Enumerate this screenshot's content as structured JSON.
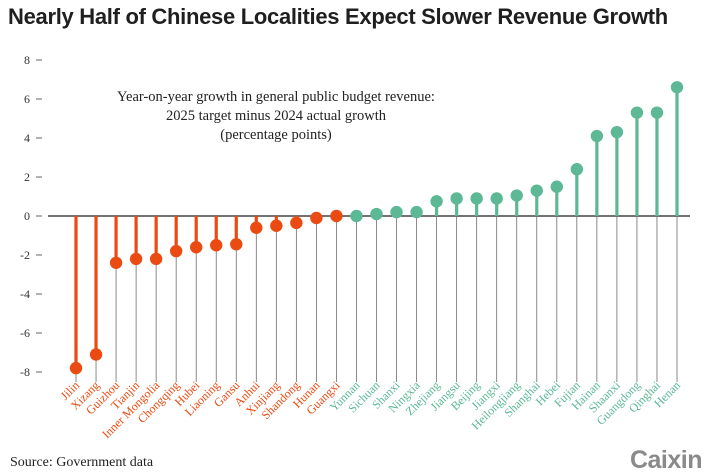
{
  "header": {
    "title": "Nearly Half of Chinese Localities Expect Slower Revenue Growth"
  },
  "annotation": {
    "line1": "Year-on-year growth in general public budget revenue:",
    "line2": "2025 target minus 2024 actual growth",
    "line3": "(percentage points)"
  },
  "footer": {
    "source": "Source: Government data",
    "brand": "Caixin"
  },
  "colors": {
    "negative": "#ea4b12",
    "positive": "#5cb895",
    "axis": "#666666",
    "title": "#1f1f1f"
  },
  "chart_data": {
    "type": "lollipop",
    "title": "Nearly Half of Chinese Localities Expect Slower Revenue Growth",
    "subtitle": "Year-on-year growth in general public budget revenue: 2025 target minus 2024 actual growth (percentage points)",
    "xlabel": "",
    "ylabel": "",
    "ylim": [
      -8,
      8
    ],
    "yticks": [
      8,
      6,
      4,
      2,
      0,
      -2,
      -4,
      -6,
      -8
    ],
    "categories": [
      "Jilin",
      "Xizang",
      "Guizhou",
      "Tianjin",
      "Inner Mongolia",
      "Chongqing",
      "Hubei",
      "Liaoning",
      "Gansu",
      "Anhui",
      "Xinjiang",
      "Shandong",
      "Hunan",
      "Guangxi",
      "Yunnan",
      "Sichuan",
      "Shanxi",
      "Ningxia",
      "Zhejiang",
      "Jiangsu",
      "Beijing",
      "Jiangxi",
      "Heilongjiang",
      "Shanghai",
      "Hebei",
      "Fujian",
      "Hainan",
      "Shaanxi",
      "Guangdong",
      "Qinghai",
      "Henan"
    ],
    "values": [
      -7.8,
      -7.1,
      -2.4,
      -2.2,
      -2.2,
      -1.8,
      -1.6,
      -1.5,
      -1.45,
      -0.6,
      -0.5,
      -0.35,
      -0.1,
      0.0,
      0.0,
      0.1,
      0.2,
      0.2,
      0.75,
      0.9,
      0.9,
      0.9,
      1.05,
      1.3,
      1.5,
      2.4,
      4.1,
      4.3,
      5.3,
      5.3,
      6.6
    ],
    "groups": [
      "slower",
      "slower",
      "slower",
      "slower",
      "slower",
      "slower",
      "slower",
      "slower",
      "slower",
      "slower",
      "slower",
      "slower",
      "slower",
      "slower",
      "faster",
      "faster",
      "faster",
      "faster",
      "faster",
      "faster",
      "faster",
      "faster",
      "faster",
      "faster",
      "faster",
      "faster",
      "faster",
      "faster",
      "faster",
      "faster",
      "faster"
    ]
  }
}
